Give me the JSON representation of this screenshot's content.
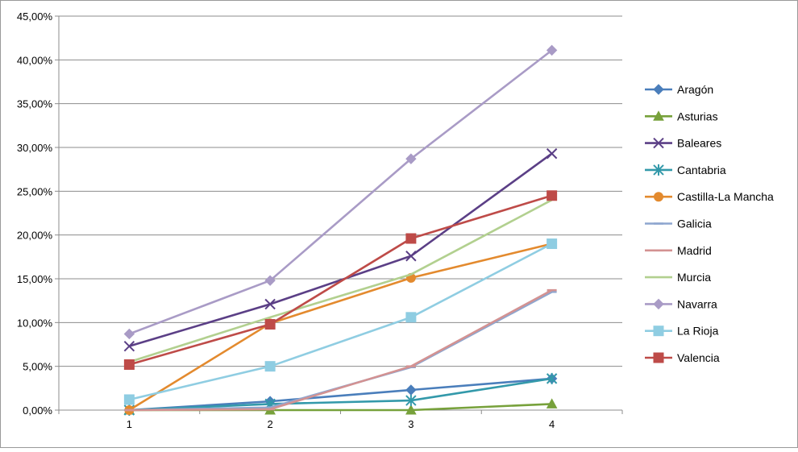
{
  "chart_data": {
    "type": "line",
    "title": "",
    "xlabel": "",
    "ylabel": "",
    "x": [
      1,
      2,
      3,
      4
    ],
    "x_tick_labels": [
      "1",
      "2",
      "3",
      "4"
    ],
    "ylim": [
      0,
      45
    ],
    "y_ticks": [
      0,
      5,
      10,
      15,
      20,
      25,
      30,
      35,
      40,
      45
    ],
    "y_tick_labels": [
      "0,00%",
      "5,00%",
      "10,00%",
      "15,00%",
      "20,00%",
      "25,00%",
      "30,00%",
      "35,00%",
      "40,00%",
      "45,00%"
    ],
    "grid": "horizontal",
    "legend_position": "right",
    "series": [
      {
        "name": "Aragón",
        "color": "#4a7ebb",
        "marker": "diamond",
        "values": [
          0,
          1,
          2.3,
          3.6
        ]
      },
      {
        "name": "Asturias",
        "color": "#77a13b",
        "marker": "triangle",
        "values": [
          0,
          0,
          0,
          0.7
        ]
      },
      {
        "name": "Baleares",
        "color": "#5b3f86",
        "marker": "x",
        "values": [
          7.3,
          12.1,
          17.6,
          29.3
        ]
      },
      {
        "name": "Cantabria",
        "color": "#3399aa",
        "marker": "star",
        "values": [
          0,
          0.7,
          1.1,
          3.6
        ]
      },
      {
        "name": "Castilla-La Mancha",
        "color": "#e38a2e",
        "marker": "circle",
        "values": [
          0,
          9.9,
          15.1,
          19
        ]
      },
      {
        "name": "Galicia",
        "color": "#8ea6cf",
        "marker": "dash",
        "values": [
          0,
          0.3,
          4.9,
          13.5
        ]
      },
      {
        "name": "Madrid",
        "color": "#d39292",
        "marker": "dash",
        "values": [
          0,
          0.1,
          5,
          13.7
        ]
      },
      {
        "name": "Murcia",
        "color": "#b2d08f",
        "marker": "none",
        "values": [
          5.5,
          10.6,
          15.5,
          24
        ]
      },
      {
        "name": "Navarra",
        "color": "#a99bc6",
        "marker": "diamond",
        "values": [
          8.7,
          14.8,
          28.7,
          41.1
        ]
      },
      {
        "name": "La Rioja",
        "color": "#8fcde2",
        "marker": "square",
        "values": [
          1.2,
          5,
          10.6,
          19
        ]
      },
      {
        "name": "Valencia",
        "color": "#be4b48",
        "marker": "square",
        "values": [
          5.2,
          9.8,
          19.6,
          24.5
        ]
      }
    ]
  }
}
